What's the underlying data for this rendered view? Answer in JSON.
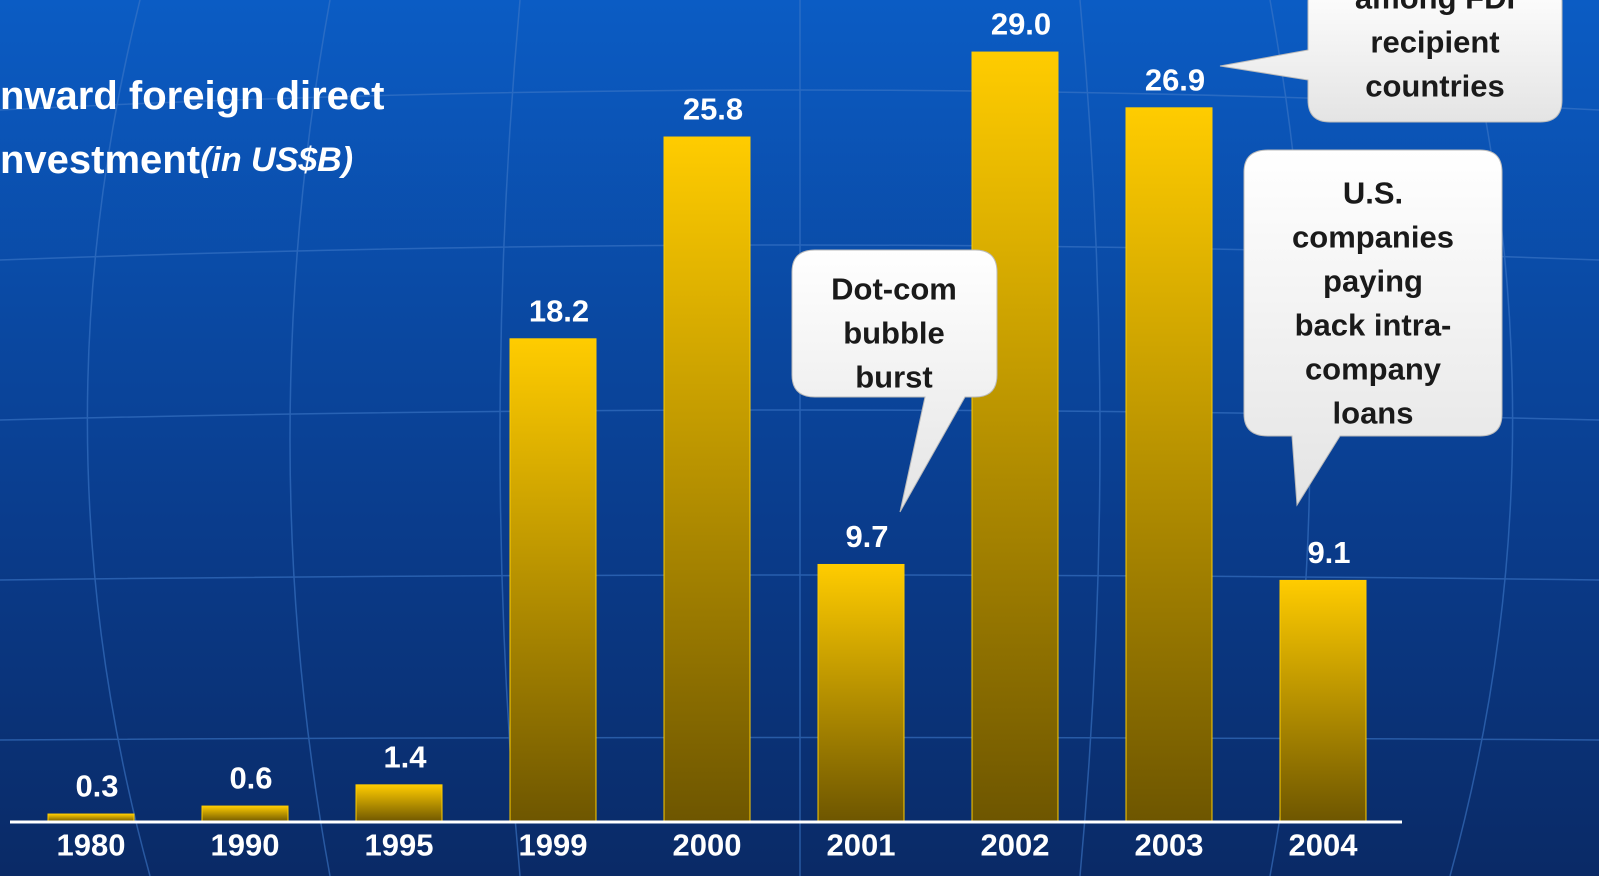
{
  "chart_data": {
    "type": "bar",
    "title": [
      "nward foreign direct",
      "nvestment"
    ],
    "unit": "(in US$B)",
    "categories": [
      "1980",
      "1990",
      "1995",
      "1999",
      "2000",
      "2001",
      "2002",
      "2003",
      "2004"
    ],
    "values": [
      0.3,
      0.6,
      1.4,
      18.2,
      25.8,
      9.7,
      29.0,
      26.9,
      9.1
    ],
    "value_labels": [
      "0.3",
      "0.6",
      "1.4",
      "18.2",
      "25.8",
      "9.7",
      "29.0",
      "26.9",
      "9.1"
    ],
    "color": "#ffcc00",
    "ylim": [
      0,
      30
    ],
    "annotations": [
      {
        "lines": [
          "among FDI",
          "recipient",
          "countries"
        ]
      },
      {
        "lines": [
          "Dot-com",
          "bubble",
          "burst"
        ]
      },
      {
        "lines": [
          "U.S.",
          "companies",
          "paying",
          "back intra-",
          "company",
          "loans"
        ]
      }
    ]
  }
}
